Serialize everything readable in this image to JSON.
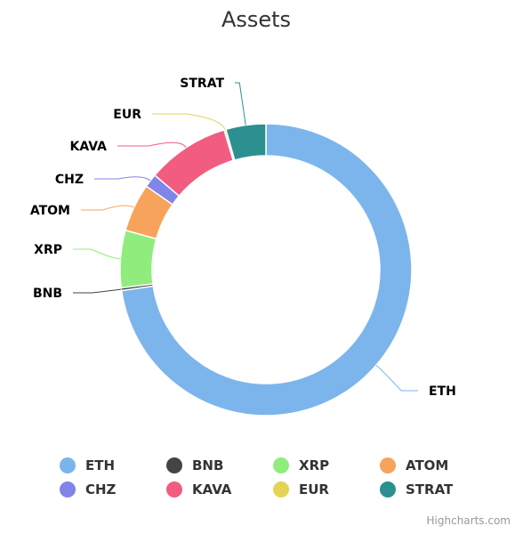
{
  "chart_data": {
    "type": "pie",
    "title": "Assets",
    "donut": true,
    "legend_position": "bottom",
    "categories": [
      "ETH",
      "BNB",
      "XRP",
      "ATOM",
      "CHZ",
      "KAVA",
      "EUR",
      "STRAT"
    ],
    "values": [
      72.2,
      0.3,
      6.3,
      5.3,
      1.5,
      9.1,
      0.2,
      4.4
    ],
    "colors": [
      "#7cb5ec",
      "#434348",
      "#90ed7d",
      "#f7a35c",
      "#8085e9",
      "#f15c80",
      "#e4d354",
      "#2b908f"
    ]
  },
  "credits": "Highcharts.com"
}
